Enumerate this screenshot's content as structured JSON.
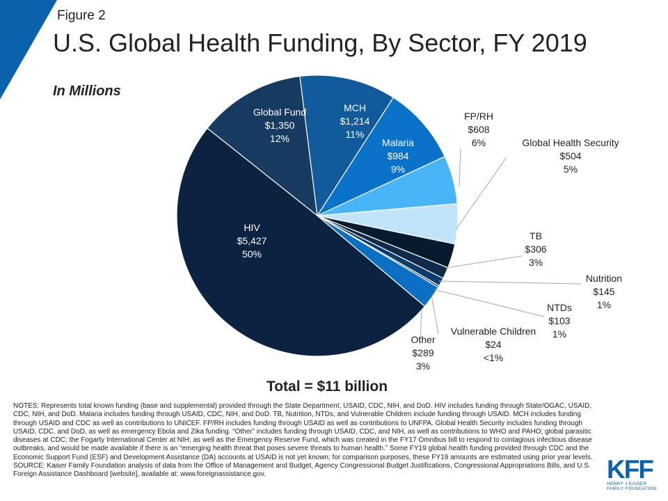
{
  "figure_label": "Figure 2",
  "title": "U.S. Global Health Funding, By Sector, FY 2019",
  "subtitle": "In Millions",
  "total": "Total = $11 billion",
  "notes": "NOTES:  Represents total known funding (base and supplemental) provided through the State Department, USAID, CDC, NIH, and DoD. HIV includes funding through State/OGAC, USAID, CDC, NIH, and DoD. Malaria includes funding through USAID, CDC, NIH, and DoD. TB, Nutrition, NTDs, and Vulnerable Children include funding through USAID. MCH includes funding through USAID and CDC as well as contributions to UNICEF. FP/RH includes funding through USAID as well as contributions to UNFPA. Global Health Security includes funding through USAID, CDC, and DoD, as well as emergency Ebola and Zika funding. “Other” includes funding through USAID, CDC, and NIH, as well as contributions to WHO and PAHO; global parasitic diseases at CDC; the Fogarty International Center at NIH; as well as the Emergency Reserve Fund, which was created in the FY17 Omnibus bill to respond to contagious infectious disease outbreaks, and would be made available if there is an “emerging health threat that poses severe threats to human health.” Some FY19 global health funding provided through CDC and the Economic Support Fund (ESF) and Development Assistance (DA) accounts at USAID is not yet known; for comparison purposes, these FY19 amounts are estimated using prior year levels.",
  "source": "SOURCE:  Kaiser Family Foundation analysis of data from the Office of Management and Budget, Agency Congressional Budget Justifications, Congressional Appropriations Bills, and U.S. Foreign Assistance Dashboard [website], available at: www.foreignassistance.gov.",
  "logo": {
    "mark": "KFF",
    "line1": "HENRY J KAISER",
    "line2": "FAMILY FOUNDATION"
  },
  "colors": {
    "accent": "#0a62ad"
  },
  "chart_data": {
    "type": "pie",
    "unit": "millions USD",
    "start_category": "Global Fund",
    "direction": "clockwise",
    "slices": [
      {
        "name": "Global Fund",
        "value": 1350,
        "value_label": "$1,350",
        "percent_label": "12%",
        "color": "#173a61"
      },
      {
        "name": "MCH",
        "value": 1214,
        "value_label": "$1,214",
        "percent_label": "11%",
        "color": "#115a9b"
      },
      {
        "name": "Malaria",
        "value": 984,
        "value_label": "$984",
        "percent_label": "9%",
        "color": "#0b72c9"
      },
      {
        "name": "FP/RH",
        "value": 608,
        "value_label": "$608",
        "percent_label": "6%",
        "color": "#48b5f8"
      },
      {
        "name": "Global Health Security",
        "value": 504,
        "value_label": "$504",
        "percent_label": "5%",
        "color": "#c2e4fb"
      },
      {
        "name": "TB",
        "value": 306,
        "value_label": "$306",
        "percent_label": "3%",
        "color": "#081a2d"
      },
      {
        "name": "Nutrition",
        "value": 145,
        "value_label": "$145",
        "percent_label": "1%",
        "color": "#102b4a"
      },
      {
        "name": "NTDs",
        "value": 103,
        "value_label": "$103",
        "percent_label": "1%",
        "color": "#0a3d6e"
      },
      {
        "name": "Vulnerable Children",
        "value": 24,
        "value_label": "$24",
        "percent_label": "<1%",
        "color": "#0c4a86"
      },
      {
        "name": "Other",
        "value": 289,
        "value_label": "$289",
        "percent_label": "3%",
        "color": "#0b6fc4"
      },
      {
        "name": "HIV",
        "value": 5427,
        "value_label": "$5,427",
        "percent_label": "50%",
        "color": "#0b2340"
      }
    ]
  }
}
